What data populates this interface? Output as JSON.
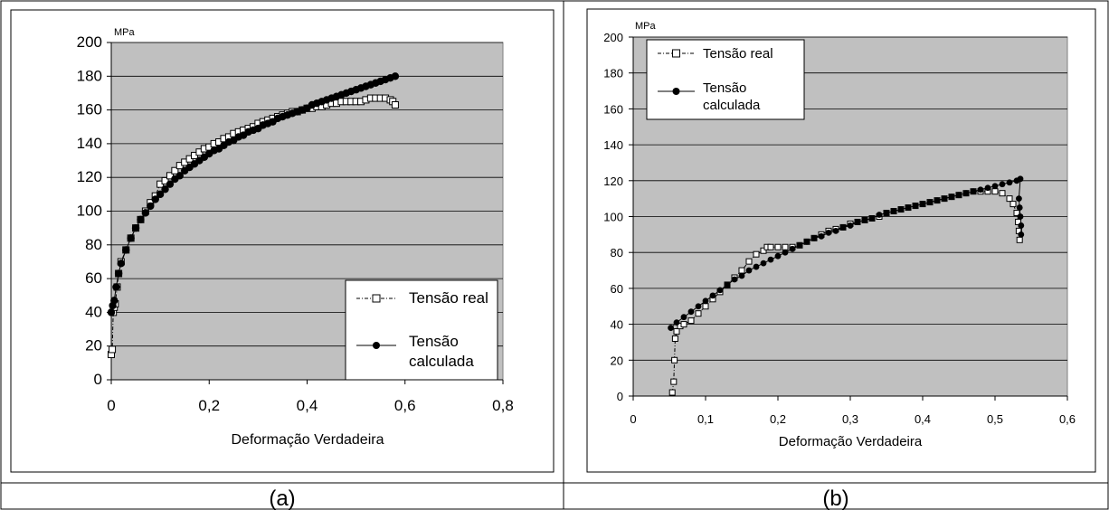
{
  "captions": [
    "(a)",
    "(b)"
  ],
  "chart_data": [
    {
      "type": "scatter",
      "panel": "a",
      "ylabel": "MPa",
      "xlabel": "Deformação Verdadeira",
      "xlim": [
        0,
        0.8
      ],
      "ylim": [
        0,
        200
      ],
      "xticks": [
        0,
        0.2,
        0.4,
        0.6,
        0.8
      ],
      "xtick_labels": [
        "0",
        "0,2",
        "0,4",
        "0,6",
        "0,8"
      ],
      "yticks": [
        0,
        20,
        40,
        60,
        80,
        100,
        120,
        140,
        160,
        180,
        200
      ],
      "ytick_labels": [
        "0",
        "20",
        "40",
        "60",
        "80",
        "100",
        "120",
        "140",
        "160",
        "180",
        "200"
      ],
      "grid": "horizontal",
      "plot_background": "#c0c0c0",
      "legend_position": "lower-right",
      "series": [
        {
          "name": "Tensão real",
          "marker": "open-square",
          "line": "dash-dot",
          "points": [
            [
              0.0,
              15
            ],
            [
              0.002,
              18
            ],
            [
              0.004,
              40
            ],
            [
              0.006,
              43
            ],
            [
              0.008,
              45
            ],
            [
              0.012,
              55
            ],
            [
              0.015,
              63
            ],
            [
              0.02,
              70
            ],
            [
              0.03,
              77
            ],
            [
              0.04,
              84
            ],
            [
              0.05,
              90
            ],
            [
              0.06,
              95
            ],
            [
              0.07,
              100
            ],
            [
              0.08,
              105
            ],
            [
              0.09,
              109
            ],
            [
              0.1,
              116
            ],
            [
              0.11,
              118
            ],
            [
              0.12,
              121
            ],
            [
              0.13,
              124
            ],
            [
              0.14,
              127
            ],
            [
              0.15,
              129
            ],
            [
              0.16,
              131
            ],
            [
              0.17,
              133
            ],
            [
              0.18,
              135
            ],
            [
              0.19,
              137
            ],
            [
              0.2,
              138
            ],
            [
              0.21,
              140
            ],
            [
              0.22,
              141
            ],
            [
              0.23,
              143
            ],
            [
              0.24,
              144
            ],
            [
              0.25,
              146
            ],
            [
              0.26,
              147
            ],
            [
              0.27,
              148
            ],
            [
              0.28,
              149
            ],
            [
              0.29,
              150
            ],
            [
              0.3,
              152
            ],
            [
              0.31,
              153
            ],
            [
              0.32,
              154
            ],
            [
              0.33,
              155
            ],
            [
              0.34,
              156
            ],
            [
              0.35,
              157
            ],
            [
              0.36,
              158
            ],
            [
              0.37,
              159
            ],
            [
              0.38,
              159
            ],
            [
              0.39,
              160
            ],
            [
              0.4,
              161
            ],
            [
              0.41,
              161
            ],
            [
              0.42,
              162
            ],
            [
              0.43,
              162
            ],
            [
              0.44,
              163
            ],
            [
              0.45,
              164
            ],
            [
              0.46,
              164
            ],
            [
              0.47,
              165
            ],
            [
              0.48,
              165
            ],
            [
              0.49,
              165
            ],
            [
              0.5,
              165
            ],
            [
              0.51,
              165
            ],
            [
              0.52,
              166
            ],
            [
              0.53,
              167
            ],
            [
              0.54,
              167
            ],
            [
              0.55,
              167
            ],
            [
              0.56,
              167
            ],
            [
              0.57,
              166
            ],
            [
              0.575,
              165
            ],
            [
              0.58,
              163
            ]
          ]
        },
        {
          "name": "Tensão calculada",
          "marker": "filled-circle",
          "line": "solid",
          "points": [
            [
              0.0,
              40
            ],
            [
              0.003,
              44
            ],
            [
              0.006,
              47
            ],
            [
              0.01,
              55
            ],
            [
              0.015,
              63
            ],
            [
              0.02,
              69
            ],
            [
              0.03,
              77
            ],
            [
              0.04,
              84
            ],
            [
              0.05,
              90
            ],
            [
              0.06,
              95
            ],
            [
              0.07,
              99
            ],
            [
              0.08,
              103
            ],
            [
              0.09,
              107
            ],
            [
              0.1,
              110
            ],
            [
              0.11,
              113
            ],
            [
              0.12,
              116
            ],
            [
              0.13,
              119
            ],
            [
              0.14,
              121
            ],
            [
              0.15,
              124
            ],
            [
              0.16,
              126
            ],
            [
              0.17,
              128
            ],
            [
              0.18,
              130
            ],
            [
              0.19,
              132
            ],
            [
              0.2,
              134
            ],
            [
              0.21,
              136
            ],
            [
              0.22,
              137
            ],
            [
              0.23,
              139
            ],
            [
              0.24,
              141
            ],
            [
              0.25,
              142
            ],
            [
              0.26,
              144
            ],
            [
              0.27,
              145
            ],
            [
              0.28,
              147
            ],
            [
              0.29,
              148
            ],
            [
              0.3,
              149
            ],
            [
              0.31,
              151
            ],
            [
              0.32,
              152
            ],
            [
              0.33,
              153
            ],
            [
              0.34,
              155
            ],
            [
              0.35,
              156
            ],
            [
              0.36,
              157
            ],
            [
              0.37,
              158
            ],
            [
              0.38,
              159
            ],
            [
              0.39,
              160
            ],
            [
              0.4,
              161
            ],
            [
              0.41,
              163
            ],
            [
              0.42,
              164
            ],
            [
              0.43,
              165
            ],
            [
              0.44,
              166
            ],
            [
              0.45,
              167
            ],
            [
              0.46,
              168
            ],
            [
              0.47,
              169
            ],
            [
              0.48,
              170
            ],
            [
              0.49,
              171
            ],
            [
              0.5,
              172
            ],
            [
              0.51,
              173
            ],
            [
              0.52,
              174
            ],
            [
              0.53,
              175
            ],
            [
              0.54,
              176
            ],
            [
              0.55,
              177
            ],
            [
              0.56,
              178
            ],
            [
              0.57,
              179
            ],
            [
              0.58,
              180
            ]
          ]
        }
      ]
    },
    {
      "type": "scatter",
      "panel": "b",
      "ylabel": "MPa",
      "xlabel": "Deformação Verdadeira",
      "xlim": [
        0,
        0.6
      ],
      "ylim": [
        0,
        200
      ],
      "xticks": [
        0,
        0.1,
        0.2,
        0.3,
        0.4,
        0.5,
        0.6
      ],
      "xtick_labels": [
        "0",
        "0,1",
        "0,2",
        "0,3",
        "0,4",
        "0,5",
        "0,6"
      ],
      "yticks": [
        0,
        20,
        40,
        60,
        80,
        100,
        120,
        140,
        160,
        180,
        200
      ],
      "ytick_labels": [
        "0",
        "20",
        "40",
        "60",
        "80",
        "100",
        "120",
        "140",
        "160",
        "180",
        "200"
      ],
      "grid": "horizontal",
      "plot_background": "#c0c0c0",
      "legend_position": "top-left",
      "series": [
        {
          "name": "Tensão real",
          "marker": "open-square",
          "line": "dash-dot",
          "points": [
            [
              0.054,
              2
            ],
            [
              0.056,
              8
            ],
            [
              0.057,
              20
            ],
            [
              0.058,
              32
            ],
            [
              0.06,
              36
            ],
            [
              0.065,
              39
            ],
            [
              0.07,
              40
            ],
            [
              0.08,
              42
            ],
            [
              0.09,
              46
            ],
            [
              0.1,
              50
            ],
            [
              0.11,
              54
            ],
            [
              0.12,
              58
            ],
            [
              0.13,
              62
            ],
            [
              0.14,
              66
            ],
            [
              0.15,
              70
            ],
            [
              0.16,
              75
            ],
            [
              0.17,
              79
            ],
            [
              0.18,
              81
            ],
            [
              0.185,
              83
            ],
            [
              0.19,
              83
            ],
            [
              0.2,
              83
            ],
            [
              0.21,
              83
            ],
            [
              0.22,
              83
            ],
            [
              0.23,
              84
            ],
            [
              0.24,
              86
            ],
            [
              0.25,
              88
            ],
            [
              0.26,
              90
            ],
            [
              0.27,
              92
            ],
            [
              0.28,
              93
            ],
            [
              0.29,
              94
            ],
            [
              0.3,
              96
            ],
            [
              0.31,
              97
            ],
            [
              0.32,
              98
            ],
            [
              0.33,
              99
            ],
            [
              0.34,
              100
            ],
            [
              0.35,
              102
            ],
            [
              0.36,
              103
            ],
            [
              0.37,
              104
            ],
            [
              0.38,
              105
            ],
            [
              0.39,
              106
            ],
            [
              0.4,
              107
            ],
            [
              0.41,
              108
            ],
            [
              0.42,
              109
            ],
            [
              0.43,
              110
            ],
            [
              0.44,
              111
            ],
            [
              0.45,
              112
            ],
            [
              0.46,
              113
            ],
            [
              0.47,
              114
            ],
            [
              0.48,
              114
            ],
            [
              0.49,
              114
            ],
            [
              0.5,
              114
            ],
            [
              0.51,
              113
            ],
            [
              0.52,
              110
            ],
            [
              0.525,
              107
            ],
            [
              0.53,
              102
            ],
            [
              0.532,
              97
            ],
            [
              0.533,
              92
            ],
            [
              0.534,
              87
            ]
          ]
        },
        {
          "name": "Tensão calculada",
          "marker": "filled-circle",
          "line": "solid",
          "points": [
            [
              0.052,
              38
            ],
            [
              0.06,
              41
            ],
            [
              0.07,
              44
            ],
            [
              0.08,
              47
            ],
            [
              0.09,
              50
            ],
            [
              0.1,
              53
            ],
            [
              0.11,
              56
            ],
            [
              0.12,
              59
            ],
            [
              0.13,
              62
            ],
            [
              0.14,
              65
            ],
            [
              0.15,
              67
            ],
            [
              0.16,
              70
            ],
            [
              0.17,
              72
            ],
            [
              0.18,
              74
            ],
            [
              0.19,
              76
            ],
            [
              0.2,
              78
            ],
            [
              0.21,
              80
            ],
            [
              0.22,
              82
            ],
            [
              0.23,
              84
            ],
            [
              0.24,
              86
            ],
            [
              0.25,
              88
            ],
            [
              0.26,
              89
            ],
            [
              0.27,
              91
            ],
            [
              0.28,
              92
            ],
            [
              0.29,
              94
            ],
            [
              0.3,
              95
            ],
            [
              0.31,
              97
            ],
            [
              0.32,
              98
            ],
            [
              0.33,
              99
            ],
            [
              0.34,
              101
            ],
            [
              0.35,
              102
            ],
            [
              0.36,
              103
            ],
            [
              0.37,
              104
            ],
            [
              0.38,
              105
            ],
            [
              0.39,
              106
            ],
            [
              0.4,
              107
            ],
            [
              0.41,
              108
            ],
            [
              0.42,
              109
            ],
            [
              0.43,
              110
            ],
            [
              0.44,
              111
            ],
            [
              0.45,
              112
            ],
            [
              0.46,
              113
            ],
            [
              0.47,
              114
            ],
            [
              0.48,
              115
            ],
            [
              0.49,
              116
            ],
            [
              0.5,
              117
            ],
            [
              0.51,
              118
            ],
            [
              0.52,
              119
            ],
            [
              0.53,
              120
            ],
            [
              0.535,
              121
            ],
            [
              0.533,
              110
            ],
            [
              0.534,
              105
            ],
            [
              0.535,
              100
            ],
            [
              0.536,
              95
            ],
            [
              0.536,
              90
            ]
          ]
        }
      ]
    }
  ]
}
